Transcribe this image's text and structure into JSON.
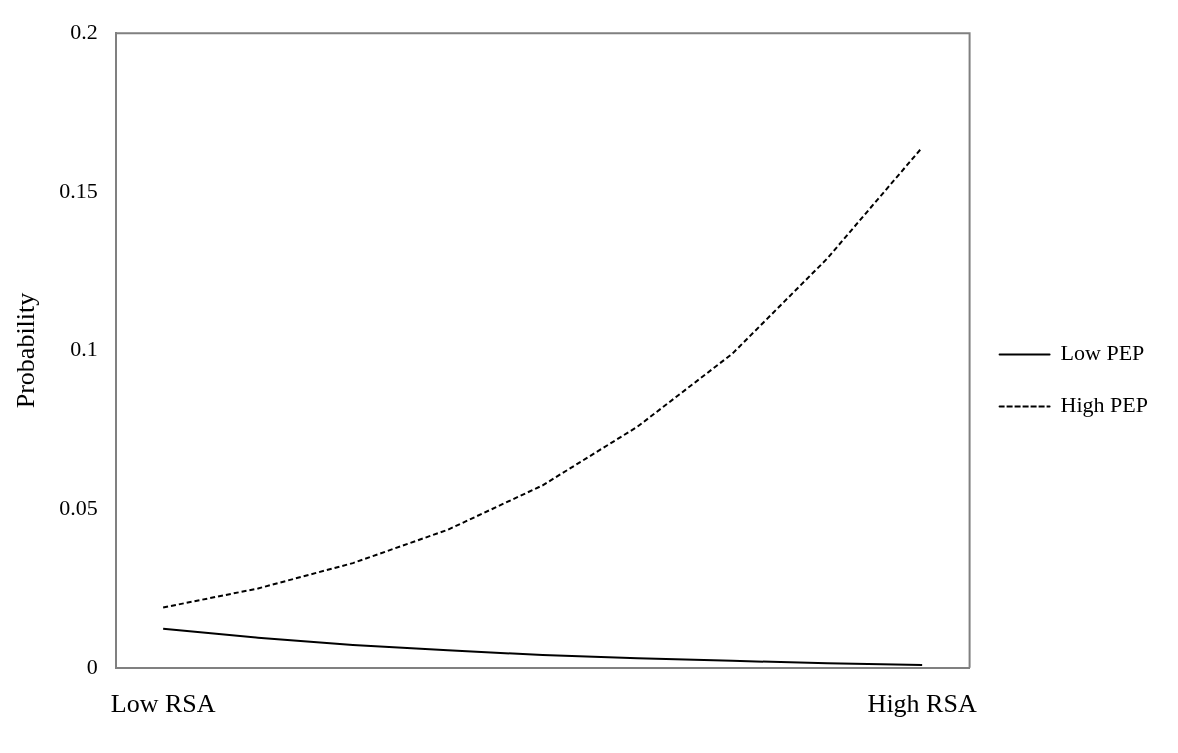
{
  "chart_data": {
    "type": "line",
    "ylabel": "Probability",
    "categories": [
      "Low RSA",
      null,
      null,
      null,
      null,
      null,
      null,
      null,
      "High RSA"
    ],
    "series": [
      {
        "name": "Low PEP",
        "color": "#000000",
        "line_style": "solid",
        "values": [
          0.0123,
          0.0095,
          0.0072,
          0.0055,
          0.004,
          0.003,
          0.0022,
          0.0014,
          0.0009
        ]
      },
      {
        "name": "High PEP",
        "color": "#000000",
        "line_style": "dashed",
        "values": [
          0.019,
          0.025,
          0.033,
          0.0435,
          0.0575,
          0.076,
          0.099,
          0.129,
          0.164
        ]
      }
    ],
    "ylim": [
      0,
      0.2
    ],
    "yticks": [
      0,
      0.05,
      0.1,
      0.15,
      0.2
    ],
    "grid": false,
    "legend": "right",
    "marker": "none"
  }
}
